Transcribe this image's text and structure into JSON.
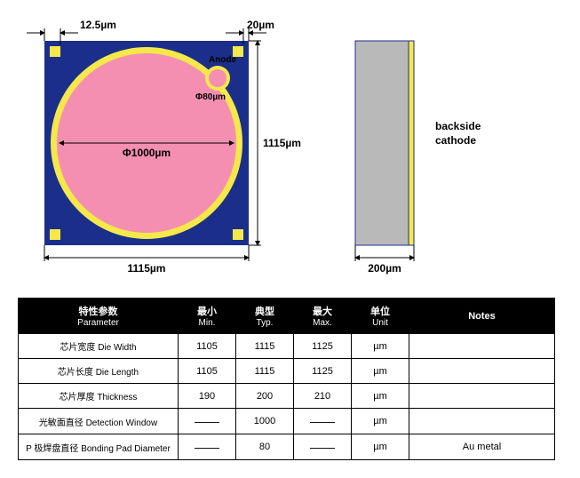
{
  "diagram": {
    "top_view": {
      "chip_color": "#1b2f8a",
      "ring_color": "#f5e84a",
      "active_color": "#f48fb1",
      "corner_pad_color": "#f5e84a",
      "dim_top_left": "12.5µm",
      "dim_top_right": "20µm",
      "dim_right": "1115µm",
      "dim_bottom": "1115µm",
      "main_circle_label": "Φ1000µm",
      "anode_label": "Anode",
      "anode_circle_label": "Φ80µm"
    },
    "side_view": {
      "body_color": "#b9b9b9",
      "back_color": "#f5e84a",
      "border_color": "#1b2f8a",
      "dim_bottom": "200µm",
      "label_line1": "backside",
      "label_line2": "cathode"
    }
  },
  "table": {
    "headers": {
      "param_cn": "特性参数",
      "param_en": "Parameter",
      "min_cn": "最小",
      "min_en": "Min.",
      "typ_cn": "典型",
      "typ_en": "Typ.",
      "max_cn": "最大",
      "max_en": "Max.",
      "unit_cn": "单位",
      "unit_en": "Unit",
      "notes": "Notes"
    },
    "rows": [
      {
        "param": "芯片宽度  Die Width",
        "min": "1105",
        "typ": "1115",
        "max": "1125",
        "unit": "µm",
        "notes": ""
      },
      {
        "param": "芯片长度  Die Length",
        "min": "1105",
        "typ": "1115",
        "max": "1125",
        "unit": "µm",
        "notes": ""
      },
      {
        "param": "芯片厚度  Thickness",
        "min": "190",
        "typ": "200",
        "max": "210",
        "unit": "µm",
        "notes": ""
      },
      {
        "param": "光敏面直径  Detection Window",
        "min": "——",
        "typ": "1000",
        "max": "——",
        "unit": "µm",
        "notes": ""
      },
      {
        "param": "P 极焊盘直径  Bonding Pad Diameter",
        "min": "——",
        "typ": "80",
        "max": "——",
        "unit": "µm",
        "notes": "Au metal"
      }
    ]
  }
}
